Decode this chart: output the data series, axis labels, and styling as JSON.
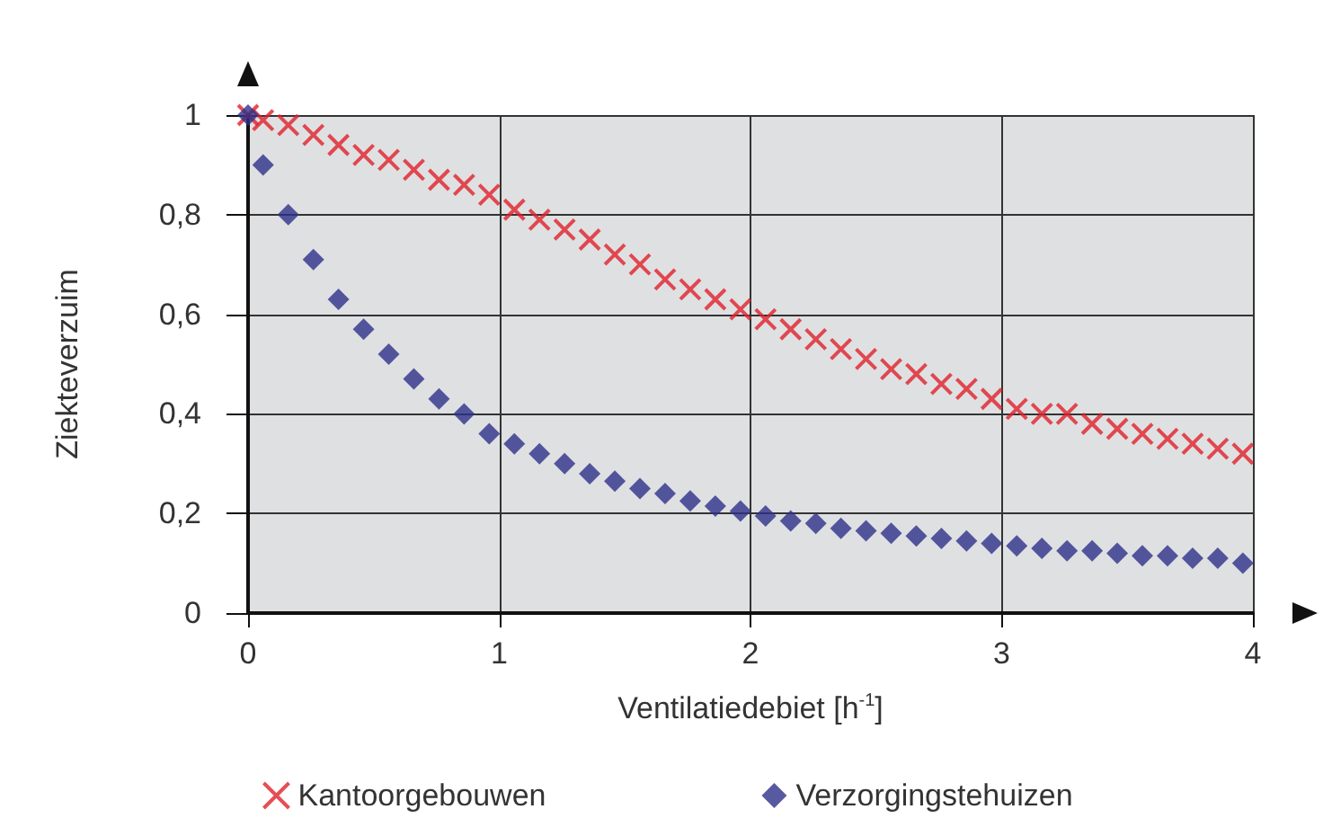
{
  "chart_data": {
    "type": "scatter",
    "xlabel": "Ventilatiedebiet [h$^{-1}$]",
    "ylabel": "Ziekteverzuim",
    "x": [
      0,
      0.06,
      0.16,
      0.26,
      0.36,
      0.46,
      0.56,
      0.66,
      0.76,
      0.86,
      0.96,
      1.06,
      1.16,
      1.26,
      1.36,
      1.46,
      1.56,
      1.66,
      1.76,
      1.86,
      1.96,
      2.06,
      2.16,
      2.26,
      2.36,
      2.46,
      2.56,
      2.66,
      2.76,
      2.86,
      2.96,
      3.06,
      3.16,
      3.26,
      3.36,
      3.46,
      3.56,
      3.66,
      3.76,
      3.86,
      3.96
    ],
    "series": [
      {
        "name": "Kantoorgebouwen",
        "color": "#e0202a",
        "marker": "cross",
        "values": [
          1.0,
          0.99,
          0.98,
          0.96,
          0.94,
          0.92,
          0.91,
          0.89,
          0.87,
          0.86,
          0.84,
          0.81,
          0.79,
          0.77,
          0.75,
          0.72,
          0.7,
          0.67,
          0.65,
          0.63,
          0.61,
          0.59,
          0.57,
          0.55,
          0.53,
          0.51,
          0.49,
          0.48,
          0.46,
          0.45,
          0.43,
          0.41,
          0.4,
          0.4,
          0.38,
          0.37,
          0.36,
          0.35,
          0.34,
          0.33,
          0.32
        ]
      },
      {
        "name": "Verzorgingstehuizen",
        "color": "#2e3189",
        "marker": "diamond",
        "values": [
          1.0,
          0.9,
          0.8,
          0.71,
          0.63,
          0.57,
          0.52,
          0.47,
          0.43,
          0.4,
          0.36,
          0.34,
          0.32,
          0.3,
          0.28,
          0.265,
          0.25,
          0.24,
          0.225,
          0.215,
          0.205,
          0.195,
          0.185,
          0.18,
          0.17,
          0.165,
          0.16,
          0.155,
          0.15,
          0.145,
          0.14,
          0.135,
          0.13,
          0.125,
          0.125,
          0.12,
          0.115,
          0.115,
          0.11,
          0.11,
          0.1
        ]
      }
    ],
    "xlim": [
      0,
      4
    ],
    "xticks": [
      0,
      1,
      2,
      3,
      4
    ],
    "ylim": [
      0,
      1
    ],
    "yticks": [
      0,
      {
        "value": 0.2,
        "label": "0,2"
      },
      {
        "value": 0.4,
        "label": "0,4"
      },
      {
        "value": 0.6,
        "label": "0,6"
      },
      {
        "value": 0.8,
        "label": "0,8"
      },
      1
    ],
    "grid": true,
    "legend": "bottom"
  }
}
